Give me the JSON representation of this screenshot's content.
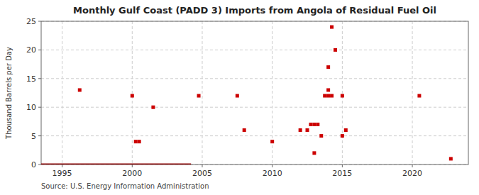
{
  "chart_data": {
    "type": "scatter",
    "title": "Monthly Gulf Coast (PADD 3) Imports from Angola of Residual Fuel Oil",
    "ylabel": "Thousand Barrels per Day",
    "source": "Source: U.S. Energy Information Administration",
    "xlim": [
      1993.5,
      2024.0
    ],
    "ylim": [
      0,
      25
    ],
    "xticks": [
      1995,
      2000,
      2005,
      2010,
      2015,
      2020
    ],
    "yticks": [
      0,
      5,
      10,
      15,
      20,
      25
    ],
    "grid": true,
    "series": [
      {
        "type": "line",
        "color": "#8b0000",
        "x": [
          1993.5,
          2004.2
        ],
        "values": [
          0,
          0
        ]
      },
      {
        "type": "scatter",
        "color": "#cc0000",
        "marker": "square",
        "x": [
          1996.25,
          2000.0,
          2000.25,
          2000.5,
          2001.5,
          2004.75,
          2007.5,
          2008.0,
          2010.0,
          2012.0,
          2012.5,
          2012.75,
          2013.0,
          2013.25,
          2013.0,
          2013.5,
          2013.75,
          2014.0,
          2014.0,
          2014.25,
          2014.0,
          2014.25,
          2014.5,
          2015.0,
          2015.25,
          2015.0,
          2020.5,
          2022.75
        ],
        "values": [
          13,
          12,
          4,
          4,
          10,
          12,
          12,
          6,
          4,
          6,
          6,
          7,
          7,
          7,
          2,
          5,
          12,
          12,
          13,
          12,
          17,
          24,
          20,
          12,
          6,
          5,
          12,
          1
        ]
      }
    ]
  }
}
